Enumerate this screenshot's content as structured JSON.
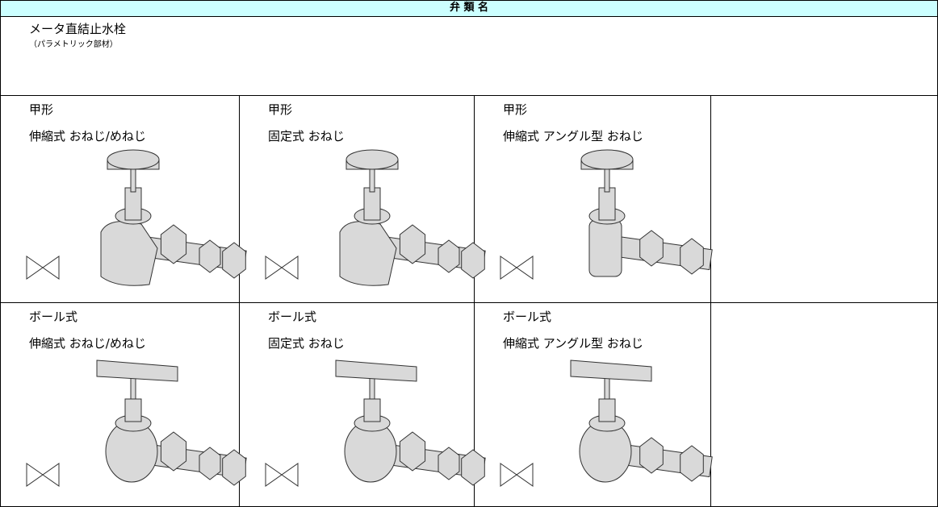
{
  "header": {
    "title": "弁 類 名"
  },
  "section": {
    "title": "メータ直結止水栓",
    "subtitle": "（パラメトリック部材）"
  },
  "rows": [
    [
      {
        "type": "甲形",
        "spec": "伸縮式 おねじ/めねじ"
      },
      {
        "type": "甲形",
        "spec": "固定式 おねじ"
      },
      {
        "type": "甲形",
        "spec": "伸縮式 アングル型 おねじ"
      }
    ],
    [
      {
        "type": "ボール式",
        "spec": "伸縮式 おねじ/めねじ"
      },
      {
        "type": "ボール式",
        "spec": "固定式 おねじ"
      },
      {
        "type": "ボール式",
        "spec": "伸縮式 アングル型 おねじ"
      }
    ]
  ]
}
